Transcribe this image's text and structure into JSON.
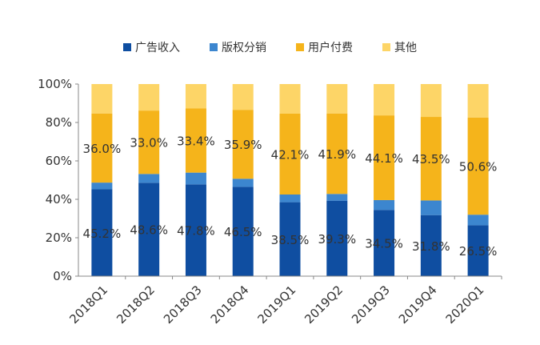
{
  "chart_data": {
    "type": "bar",
    "stacked": true,
    "percent": true,
    "categories": [
      "2018Q1",
      "2018Q2",
      "2018Q3",
      "2018Q4",
      "2019Q1",
      "2019Q2",
      "2019Q3",
      "2019Q4",
      "2020Q1"
    ],
    "series": [
      {
        "name": "广告收入",
        "color": "#0f4ea1",
        "values": [
          45.2,
          48.6,
          47.8,
          46.5,
          38.5,
          39.3,
          34.5,
          31.8,
          26.5
        ],
        "labels": [
          "45.2%",
          "48.6%",
          "47.8%",
          "46.5%",
          "38.5%",
          "39.3%",
          "34.5%",
          "31.8%",
          "26.5%"
        ]
      },
      {
        "name": "版权分销",
        "color": "#3c86cf",
        "values": [
          3.5,
          4.6,
          6.1,
          4.2,
          4.0,
          3.5,
          5.1,
          7.6,
          5.5
        ],
        "labels": null
      },
      {
        "name": "用户付费",
        "color": "#f5b41b",
        "values": [
          36.0,
          33.0,
          33.4,
          35.9,
          42.1,
          41.9,
          44.1,
          43.5,
          50.6
        ],
        "labels": [
          "36.0%",
          "33.0%",
          "33.4%",
          "35.9%",
          "42.1%",
          "41.9%",
          "44.1%",
          "43.5%",
          "50.6%"
        ]
      },
      {
        "name": "其他",
        "color": "#fdd567",
        "values": [
          15.3,
          13.8,
          12.7,
          13.4,
          15.4,
          15.3,
          16.3,
          17.1,
          17.4
        ],
        "labels": null
      }
    ],
    "yticks": [
      "0%",
      "20%",
      "40%",
      "60%",
      "80%",
      "100%"
    ],
    "ylim": [
      0,
      100
    ],
    "legend_position": "top",
    "grid": false
  }
}
